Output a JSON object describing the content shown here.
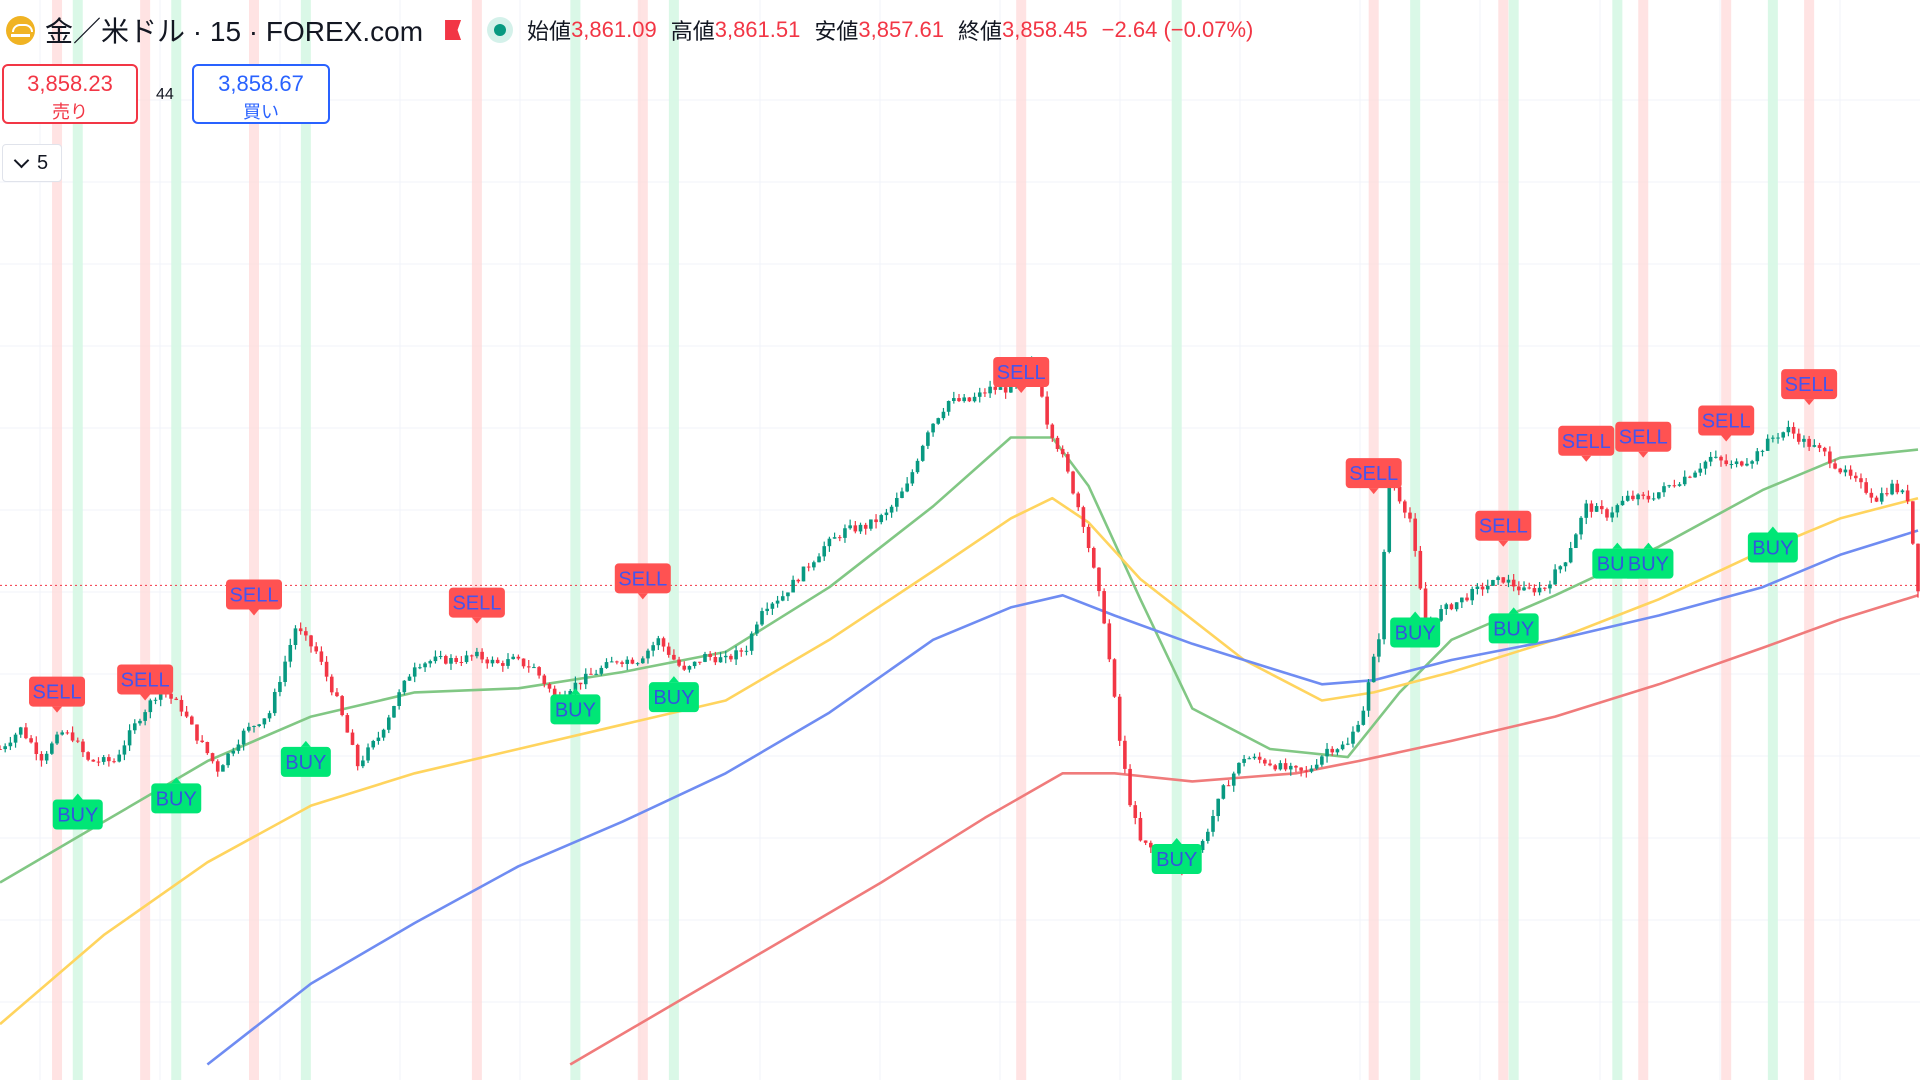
{
  "header": {
    "symbol_title": "金／米ドル · 15 · FOREX.com",
    "ohlc": {
      "open_label": "始値",
      "open": "3,861.09",
      "high_label": "高値",
      "high": "3,861.51",
      "low_label": "安値",
      "low": "3,857.61",
      "close_label": "終値",
      "close": "3,858.45",
      "change": "−2.64 (−0.07%)"
    }
  },
  "trade": {
    "sell_price": "3,858.23",
    "sell_label": "売り",
    "spread": "44",
    "buy_price": "3,858.67",
    "buy_label": "買い"
  },
  "indicators": {
    "count": "5"
  },
  "colors": {
    "up": "#089981",
    "down": "#f23645",
    "ema_green": "#81c784",
    "ema_yellow": "#ffd45e",
    "ema_blue": "#6f8cf2",
    "ema_red": "#f07b7b",
    "sell_tag": "#ff5252",
    "buy_tag": "#00e676",
    "sell_band": "#ffd9d9",
    "buy_band": "#d3f7e3"
  },
  "chart_data": {
    "type": "candlestick",
    "current_price": 3858.45,
    "candles": {
      "close_path": [
        [
          0,
          3818
        ],
        [
          4,
          3823
        ],
        [
          8,
          3816
        ],
        [
          12,
          3822
        ],
        [
          14,
          3821
        ],
        [
          17,
          3815
        ],
        [
          22,
          3815
        ],
        [
          27,
          3826
        ],
        [
          31,
          3833
        ],
        [
          35,
          3828
        ],
        [
          38,
          3821
        ],
        [
          42,
          3813
        ],
        [
          47,
          3822
        ],
        [
          52,
          3827
        ],
        [
          57,
          3848
        ],
        [
          61,
          3842
        ],
        [
          65,
          3830
        ],
        [
          69,
          3814
        ],
        [
          73,
          3821
        ],
        [
          76,
          3829
        ],
        [
          80,
          3839
        ],
        [
          84,
          3840
        ],
        [
          88,
          3840
        ],
        [
          92,
          3841
        ],
        [
          96,
          3839
        ],
        [
          99,
          3840
        ],
        [
          103,
          3838
        ],
        [
          107,
          3831
        ],
        [
          111,
          3834
        ],
        [
          115,
          3837
        ],
        [
          119,
          3840
        ],
        [
          123,
          3840
        ],
        [
          127,
          3845
        ],
        [
          132,
          3837
        ],
        [
          136,
          3841
        ],
        [
          140,
          3840
        ],
        [
          144,
          3843
        ],
        [
          147,
          3853
        ],
        [
          151,
          3856
        ],
        [
          155,
          3862
        ],
        [
          159,
          3868
        ],
        [
          163,
          3872
        ],
        [
          167,
          3873
        ],
        [
          171,
          3876
        ],
        [
          175,
          3883
        ],
        [
          179,
          3897
        ],
        [
          183,
          3904
        ],
        [
          187,
          3904
        ],
        [
          191,
          3907
        ],
        [
          195,
          3907
        ],
        [
          199,
          3913
        ],
        [
          201,
          3906
        ],
        [
          202,
          3899
        ],
        [
          205,
          3890
        ],
        [
          209,
          3874
        ],
        [
          213,
          3850
        ],
        [
          216,
          3820
        ],
        [
          218,
          3805
        ],
        [
          220,
          3795
        ],
        [
          224,
          3792
        ],
        [
          228,
          3788
        ],
        [
          232,
          3795
        ],
        [
          236,
          3808
        ],
        [
          240,
          3816
        ],
        [
          244,
          3815
        ],
        [
          248,
          3813
        ],
        [
          252,
          3812
        ],
        [
          256,
          3818
        ],
        [
          260,
          3819
        ],
        [
          263,
          3828
        ],
        [
          266,
          3846
        ],
        [
          268,
          3886
        ],
        [
          270,
          3880
        ],
        [
          272,
          3875
        ],
        [
          275,
          3848
        ],
        [
          278,
          3852
        ],
        [
          282,
          3855
        ],
        [
          286,
          3858
        ],
        [
          290,
          3860
        ],
        [
          294,
          3857
        ],
        [
          298,
          3858
        ],
        [
          302,
          3865
        ],
        [
          306,
          3878
        ],
        [
          310,
          3876
        ],
        [
          314,
          3880
        ],
        [
          318,
          3880
        ],
        [
          322,
          3883
        ],
        [
          326,
          3886
        ],
        [
          330,
          3890
        ],
        [
          334,
          3888
        ],
        [
          338,
          3890
        ],
        [
          342,
          3895
        ],
        [
          345,
          3897
        ],
        [
          348,
          3894
        ],
        [
          352,
          3891
        ],
        [
          355,
          3887
        ],
        [
          358,
          3884
        ],
        [
          362,
          3880
        ],
        [
          365,
          3883
        ],
        [
          368,
          3880
        ],
        [
          370,
          3858
        ]
      ]
    },
    "moving_averages": [
      {
        "color": "#81c784",
        "values": [
          [
            0,
            3785
          ],
          [
            20,
            3800
          ],
          [
            40,
            3815
          ],
          [
            60,
            3826
          ],
          [
            80,
            3832
          ],
          [
            100,
            3833
          ],
          [
            120,
            3837
          ],
          [
            140,
            3842
          ],
          [
            160,
            3858
          ],
          [
            180,
            3878
          ],
          [
            195,
            3895
          ],
          [
            203,
            3895
          ],
          [
            210,
            3883
          ],
          [
            220,
            3855
          ],
          [
            230,
            3828
          ],
          [
            245,
            3818
          ],
          [
            260,
            3816
          ],
          [
            270,
            3832
          ],
          [
            280,
            3845
          ],
          [
            300,
            3856
          ],
          [
            320,
            3868
          ],
          [
            340,
            3882
          ],
          [
            355,
            3890
          ],
          [
            370,
            3892
          ]
        ]
      },
      {
        "color": "#ffd45e",
        "values": [
          [
            0,
            3750
          ],
          [
            20,
            3772
          ],
          [
            40,
            3790
          ],
          [
            60,
            3804
          ],
          [
            80,
            3812
          ],
          [
            100,
            3818
          ],
          [
            120,
            3824
          ],
          [
            140,
            3830
          ],
          [
            160,
            3845
          ],
          [
            180,
            3862
          ],
          [
            195,
            3875
          ],
          [
            203,
            3880
          ],
          [
            210,
            3874
          ],
          [
            220,
            3860
          ],
          [
            240,
            3840
          ],
          [
            255,
            3830
          ],
          [
            265,
            3832
          ],
          [
            280,
            3837
          ],
          [
            300,
            3845
          ],
          [
            320,
            3855
          ],
          [
            340,
            3867
          ],
          [
            355,
            3875
          ],
          [
            370,
            3880
          ]
        ]
      },
      {
        "color": "#6f8cf2",
        "values": [
          [
            40,
            3740
          ],
          [
            60,
            3760
          ],
          [
            80,
            3775
          ],
          [
            100,
            3789
          ],
          [
            120,
            3800
          ],
          [
            140,
            3812
          ],
          [
            160,
            3827
          ],
          [
            180,
            3845
          ],
          [
            195,
            3853
          ],
          [
            205,
            3856
          ],
          [
            215,
            3851
          ],
          [
            230,
            3844
          ],
          [
            245,
            3838
          ],
          [
            255,
            3834
          ],
          [
            265,
            3835
          ],
          [
            280,
            3840
          ],
          [
            300,
            3845
          ],
          [
            320,
            3851
          ],
          [
            340,
            3858
          ],
          [
            355,
            3866
          ],
          [
            370,
            3872
          ]
        ]
      },
      {
        "color": "#f07b7b",
        "values": [
          [
            110,
            3740
          ],
          [
            130,
            3755
          ],
          [
            150,
            3770
          ],
          [
            170,
            3785
          ],
          [
            190,
            3801
          ],
          [
            205,
            3812
          ],
          [
            215,
            3812
          ],
          [
            230,
            3810
          ],
          [
            250,
            3812
          ],
          [
            262,
            3815
          ],
          [
            280,
            3820
          ],
          [
            300,
            3826
          ],
          [
            320,
            3834
          ],
          [
            340,
            3843
          ],
          [
            355,
            3850
          ],
          [
            370,
            3856
          ]
        ]
      }
    ],
    "signals": [
      {
        "type": "SELL",
        "bar": 11,
        "price": 3827
      },
      {
        "type": "SELL",
        "bar": 28,
        "price": 3830
      },
      {
        "type": "SELL",
        "bar": 49,
        "price": 3851
      },
      {
        "type": "SELL",
        "bar": 92,
        "price": 3849
      },
      {
        "type": "SELL",
        "bar": 124,
        "price": 3855
      },
      {
        "type": "SELL",
        "bar": 197,
        "price": 3906
      },
      {
        "type": "SELL",
        "bar": 265,
        "price": 3881
      },
      {
        "type": "SELL",
        "bar": 290,
        "price": 3868
      },
      {
        "type": "SELL",
        "bar": 306,
        "price": 3889
      },
      {
        "type": "SELL",
        "bar": 317,
        "price": 3890
      },
      {
        "type": "SELL",
        "bar": 333,
        "price": 3894
      },
      {
        "type": "SELL",
        "bar": 349,
        "price": 3903
      },
      {
        "type": "BUY",
        "bar": 15,
        "price": 3807
      },
      {
        "type": "BUY",
        "bar": 34,
        "price": 3811
      },
      {
        "type": "BUY",
        "bar": 59,
        "price": 3820
      },
      {
        "type": "BUY",
        "bar": 111,
        "price": 3833
      },
      {
        "type": "BUY",
        "bar": 130,
        "price": 3836
      },
      {
        "type": "BUY",
        "bar": 227,
        "price": 3796
      },
      {
        "type": "BUY",
        "bar": 273,
        "price": 3852
      },
      {
        "type": "BUY",
        "bar": 292,
        "price": 3853
      },
      {
        "type": "BUY",
        "bar": 312,
        "price": 3869
      },
      {
        "type": "BUY",
        "bar": 318,
        "price": 3869
      },
      {
        "type": "BUY",
        "bar": 342,
        "price": 3873
      }
    ],
    "sell_bands": [
      11,
      28,
      49,
      92,
      124,
      197,
      265,
      290,
      317,
      333,
      349
    ],
    "buy_bands": [
      15,
      34,
      59,
      111,
      130,
      227,
      273,
      292,
      312,
      342
    ]
  }
}
